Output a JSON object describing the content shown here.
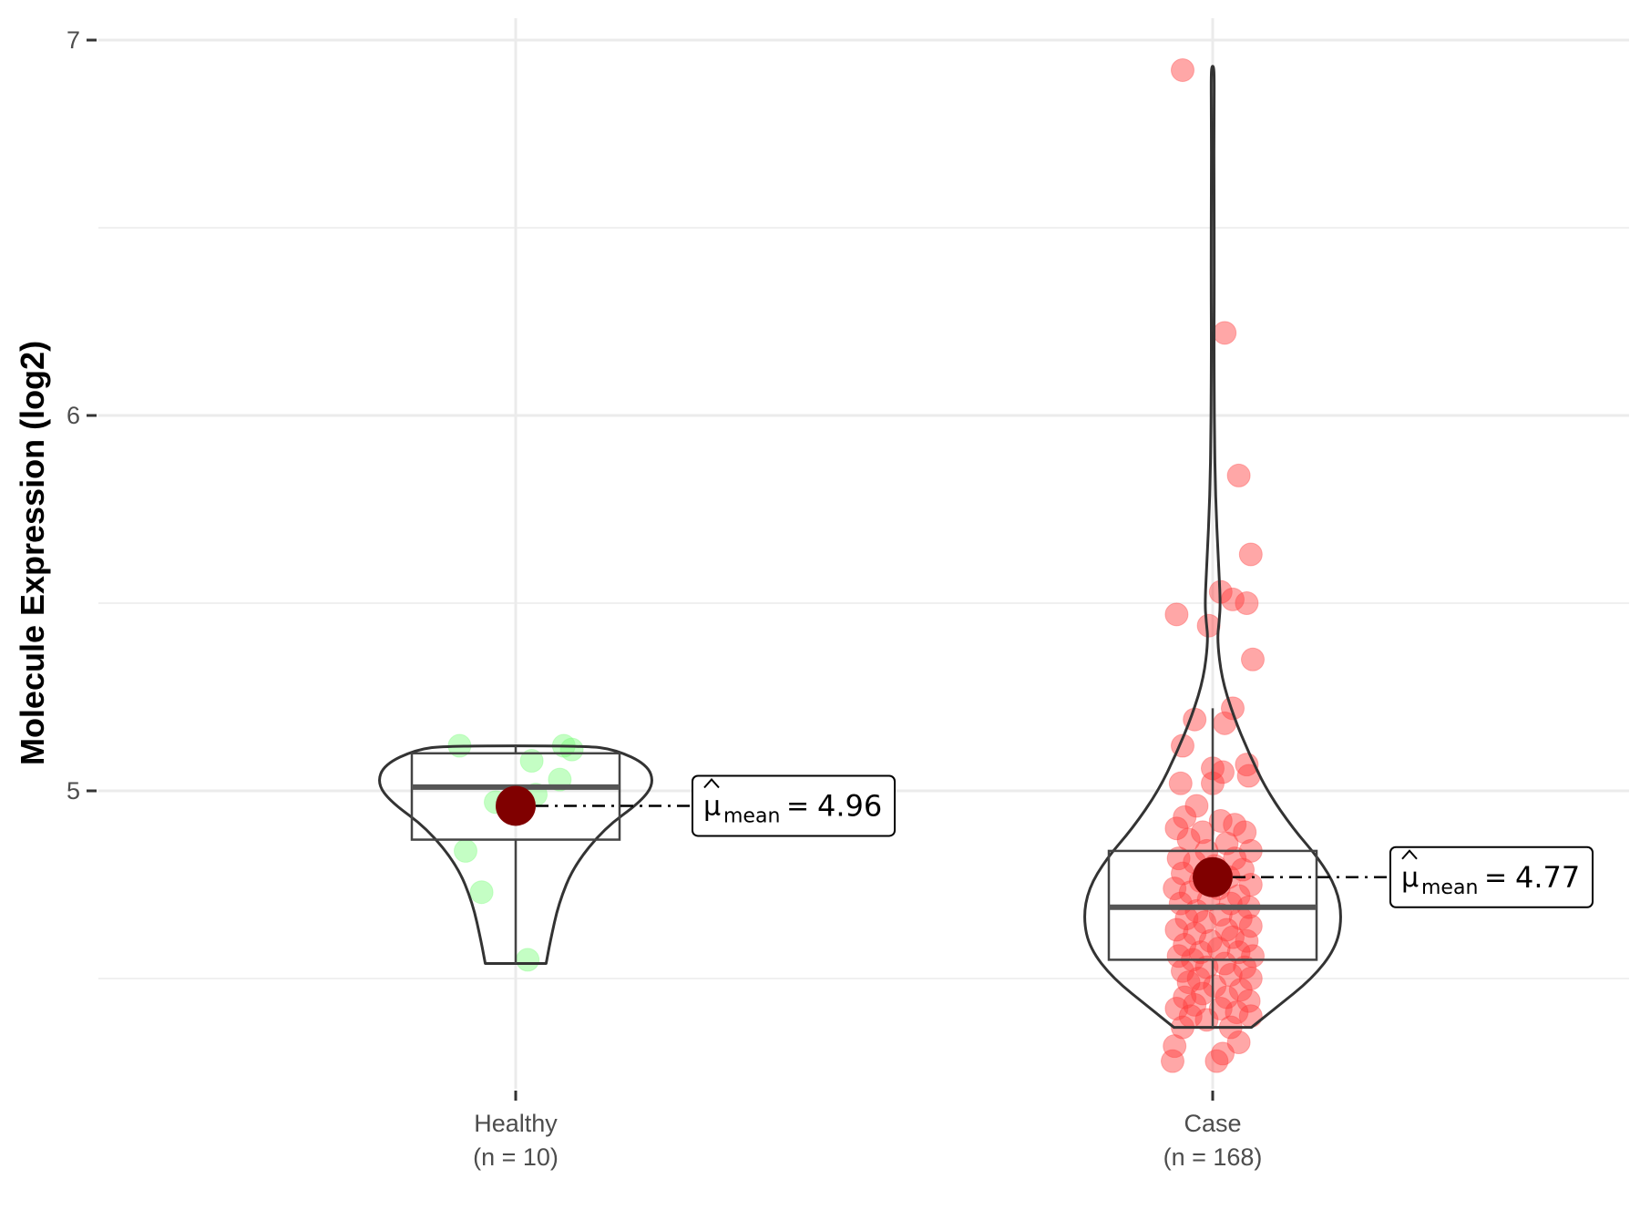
{
  "chart_data": {
    "type": "violin",
    "ylabel": "Molecule Expression (log2)",
    "ylim": [
      4.3,
      7.05
    ],
    "y_ticks": [
      5,
      6,
      7
    ],
    "y_minor_ticks": [
      4.5,
      5.5,
      6.5
    ],
    "grid": true,
    "groups": [
      {
        "name": "Healthy",
        "n_label": "(n = 10)",
        "point_color": "#7cfc7c",
        "mean": 4.96,
        "mean_label": "4.96",
        "box": {
          "q1": 4.87,
          "median": 5.01,
          "q3": 5.1,
          "whisker_low": 4.54,
          "whisker_high": 5.12
        },
        "violin": {
          "y": [
            4.54,
            4.6,
            4.7,
            4.8,
            4.9,
            4.97,
            5.02,
            5.07,
            5.11,
            5.12
          ],
          "width": [
            0.22,
            0.25,
            0.31,
            0.42,
            0.64,
            0.9,
            1.0,
            0.95,
            0.72,
            0.5
          ]
        },
        "points": [
          {
            "j": -0.28,
            "y": 5.12
          },
          {
            "j": 0.08,
            "y": 5.08
          },
          {
            "j": 0.24,
            "y": 5.12
          },
          {
            "j": 0.28,
            "y": 5.11
          },
          {
            "j": 0.22,
            "y": 5.03
          },
          {
            "j": 0.1,
            "y": 4.99
          },
          {
            "j": -0.1,
            "y": 4.97
          },
          {
            "j": -0.25,
            "y": 4.84
          },
          {
            "j": -0.17,
            "y": 4.73
          },
          {
            "j": 0.06,
            "y": 4.55
          }
        ]
      },
      {
        "name": "Case",
        "n_label": "(n = 168)",
        "point_color": "#ff3b3b",
        "mean": 4.77,
        "mean_label": "4.77",
        "box": {
          "q1": 4.55,
          "median": 4.69,
          "q3": 4.84,
          "whisker_low": 4.37,
          "whisker_high": 5.22
        },
        "violin": {
          "y": [
            4.37,
            4.42,
            4.5,
            4.58,
            4.66,
            4.74,
            4.82,
            4.9,
            5.0,
            5.1,
            5.2,
            5.3,
            5.4,
            5.45,
            5.5,
            5.6,
            5.8,
            6.0,
            6.2,
            6.4,
            6.6,
            6.8,
            6.9,
            6.93
          ],
          "width": [
            0.3,
            0.48,
            0.77,
            0.95,
            1.0,
            0.96,
            0.82,
            0.62,
            0.42,
            0.28,
            0.16,
            0.07,
            0.035,
            0.05,
            0.06,
            0.045,
            0.02,
            0.012,
            0.01,
            0.012,
            0.01,
            0.01,
            0.012,
            0.008
          ]
        },
        "points": [
          {
            "j": -0.15,
            "y": 6.92
          },
          {
            "j": 0.06,
            "y": 6.22
          },
          {
            "j": 0.13,
            "y": 5.84
          },
          {
            "j": 0.19,
            "y": 5.63
          },
          {
            "j": 0.04,
            "y": 5.53
          },
          {
            "j": 0.1,
            "y": 5.51
          },
          {
            "j": 0.17,
            "y": 5.5
          },
          {
            "j": -0.18,
            "y": 5.47
          },
          {
            "j": -0.02,
            "y": 5.44
          },
          {
            "j": 0.2,
            "y": 5.35
          },
          {
            "j": 0.1,
            "y": 5.22
          },
          {
            "j": -0.09,
            "y": 5.19
          },
          {
            "j": 0.06,
            "y": 5.18
          },
          {
            "j": -0.15,
            "y": 5.12
          },
          {
            "j": 0.17,
            "y": 5.07
          },
          {
            "j": 0.0,
            "y": 5.06
          },
          {
            "j": 0.05,
            "y": 5.05
          },
          {
            "j": 0.18,
            "y": 5.04
          },
          {
            "j": -0.16,
            "y": 5.02
          },
          {
            "j": 0.0,
            "y": 5.02
          },
          {
            "j": -0.08,
            "y": 4.96
          },
          {
            "j": -0.14,
            "y": 4.93
          },
          {
            "j": 0.04,
            "y": 4.92
          },
          {
            "j": 0.11,
            "y": 4.91
          },
          {
            "j": -0.18,
            "y": 4.9
          },
          {
            "j": -0.05,
            "y": 4.89
          },
          {
            "j": 0.16,
            "y": 4.89
          },
          {
            "j": -0.12,
            "y": 4.87
          },
          {
            "j": 0.07,
            "y": 4.86
          },
          {
            "j": -0.03,
            "y": 4.84
          },
          {
            "j": 0.19,
            "y": 4.84
          },
          {
            "j": -0.17,
            "y": 4.82
          },
          {
            "j": 0.11,
            "y": 4.82
          },
          {
            "j": -0.09,
            "y": 4.81
          },
          {
            "j": 0.01,
            "y": 4.8
          },
          {
            "j": 0.15,
            "y": 4.79
          },
          {
            "j": -0.15,
            "y": 4.78
          },
          {
            "j": 0.08,
            "y": 4.77
          },
          {
            "j": -0.06,
            "y": 4.76
          },
          {
            "j": 0.19,
            "y": 4.75
          },
          {
            "j": -0.19,
            "y": 4.74
          },
          {
            "j": 0.03,
            "y": 4.74
          },
          {
            "j": -0.11,
            "y": 4.73
          },
          {
            "j": 0.13,
            "y": 4.72
          },
          {
            "j": -0.02,
            "y": 4.71
          },
          {
            "j": -0.16,
            "y": 4.7
          },
          {
            "j": 0.09,
            "y": 4.7
          },
          {
            "j": 0.18,
            "y": 4.69
          },
          {
            "j": -0.08,
            "y": 4.68
          },
          {
            "j": 0.04,
            "y": 4.67
          },
          {
            "j": -0.13,
            "y": 4.66
          },
          {
            "j": 0.14,
            "y": 4.66
          },
          {
            "j": -0.04,
            "y": 4.65
          },
          {
            "j": 0.19,
            "y": 4.64
          },
          {
            "j": -0.18,
            "y": 4.63
          },
          {
            "j": 0.07,
            "y": 4.63
          },
          {
            "j": -0.09,
            "y": 4.62
          },
          {
            "j": 0.1,
            "y": 4.61
          },
          {
            "j": -0.01,
            "y": 4.6
          },
          {
            "j": 0.17,
            "y": 4.6
          },
          {
            "j": -0.14,
            "y": 4.59
          },
          {
            "j": 0.03,
            "y": 4.58
          },
          {
            "j": -0.06,
            "y": 4.57
          },
          {
            "j": 0.13,
            "y": 4.57
          },
          {
            "j": -0.17,
            "y": 4.56
          },
          {
            "j": 0.2,
            "y": 4.56
          },
          {
            "j": -0.1,
            "y": 4.55
          },
          {
            "j": 0.06,
            "y": 4.54
          },
          {
            "j": -0.03,
            "y": 4.53
          },
          {
            "j": 0.16,
            "y": 4.53
          },
          {
            "j": -0.15,
            "y": 4.52
          },
          {
            "j": 0.09,
            "y": 4.51
          },
          {
            "j": -0.07,
            "y": 4.5
          },
          {
            "j": 0.19,
            "y": 4.5
          },
          {
            "j": -0.12,
            "y": 4.49
          },
          {
            "j": 0.01,
            "y": 4.48
          },
          {
            "j": 0.14,
            "y": 4.47
          },
          {
            "j": -0.05,
            "y": 4.46
          },
          {
            "j": -0.14,
            "y": 4.45
          },
          {
            "j": 0.07,
            "y": 4.45
          },
          {
            "j": 0.18,
            "y": 4.44
          },
          {
            "j": -0.09,
            "y": 4.43
          },
          {
            "j": -0.18,
            "y": 4.42
          },
          {
            "j": 0.04,
            "y": 4.42
          },
          {
            "j": 0.12,
            "y": 4.41
          },
          {
            "j": -0.11,
            "y": 4.4
          },
          {
            "j": 0.19,
            "y": 4.4
          },
          {
            "j": -0.03,
            "y": 4.39
          },
          {
            "j": -0.15,
            "y": 4.37
          },
          {
            "j": 0.09,
            "y": 4.37
          },
          {
            "j": 0.13,
            "y": 4.33
          },
          {
            "j": -0.19,
            "y": 4.32
          },
          {
            "j": 0.05,
            "y": 4.3
          },
          {
            "j": -0.2,
            "y": 4.28
          },
          {
            "j": 0.02,
            "y": 4.28
          }
        ]
      }
    ],
    "colors": {
      "mean_point": "#800000",
      "outline": "#333333",
      "box_median": "#555555",
      "grid": "#ebebeb"
    }
  }
}
